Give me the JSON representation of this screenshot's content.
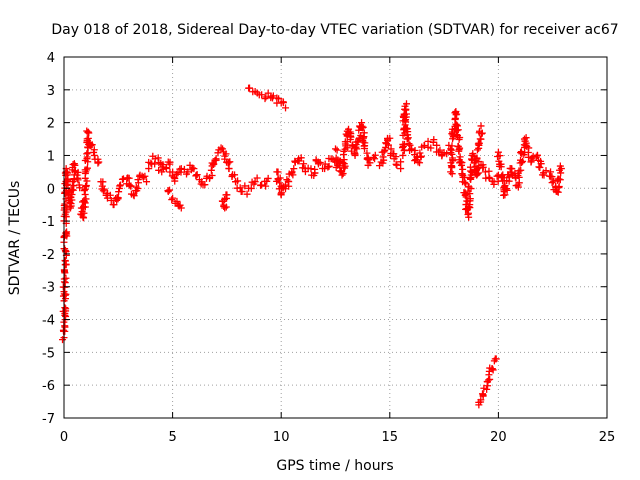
{
  "chart_data": {
    "type": "scatter",
    "title": "Day 018 of 2018, Sidereal Day-to-day VTEC variation (SDTVAR) for receiver ac67",
    "xlabel": "GPS time / hours",
    "ylabel": "SDTVAR / TECUs",
    "xlim": [
      0,
      25
    ],
    "ylim": [
      -7,
      4
    ],
    "xticks": [
      0,
      5,
      10,
      15,
      20,
      25
    ],
    "yticks": [
      -7,
      -6,
      -5,
      -4,
      -3,
      -2,
      -1,
      0,
      1,
      2,
      3,
      4
    ],
    "grid": true,
    "marker": "plus",
    "series": [
      {
        "name": "SDTVAR",
        "color": "#ff0000",
        "segments": [
          {
            "x": [
              0.0,
              0.0,
              0.0,
              0.1
            ],
            "y": [
              -1.5,
              -3.15,
              -4.55,
              0.6
            ]
          },
          {
            "x": [
              0.1,
              0.2,
              0.3,
              0.4,
              0.5,
              0.6,
              0.7
            ],
            "y": [
              0.5,
              -0.3,
              -0.6,
              0.2,
              0.7,
              0.4,
              0.1
            ]
          },
          {
            "x": [
              0.8,
              0.9,
              1.0,
              1.1,
              1.2,
              1.4,
              1.6
            ],
            "y": [
              -0.6,
              -0.9,
              0.5,
              1.7,
              1.3,
              1.0,
              0.8
            ]
          },
          {
            "x": [
              1.7,
              2.0,
              2.3,
              2.6,
              2.9,
              3.2,
              3.5,
              3.8
            ],
            "y": [
              0.2,
              -0.3,
              -0.5,
              0.1,
              0.3,
              -0.2,
              0.4,
              0.2
            ]
          },
          {
            "x": [
              3.9,
              4.2,
              4.5,
              4.8,
              5.1,
              5.4,
              5.7
            ],
            "y": [
              0.6,
              0.9,
              0.5,
              0.8,
              0.3,
              0.6,
              0.5
            ]
          },
          {
            "x": [
              4.8,
              5.0,
              5.2,
              5.4
            ],
            "y": [
              -0.1,
              -0.3,
              -0.4,
              -0.6
            ]
          },
          {
            "x": [
              5.8,
              6.1,
              6.4,
              6.7,
              7.0,
              7.3,
              7.6,
              7.9,
              8.2,
              8.5,
              8.8,
              9.1,
              9.4
            ],
            "y": [
              0.7,
              0.4,
              0.1,
              0.3,
              0.9,
              1.2,
              0.6,
              0.2,
              -0.1,
              0.0,
              0.2,
              0.1,
              0.3
            ]
          },
          {
            "x": [
              7.3,
              7.4,
              7.5
            ],
            "y": [
              -0.4,
              -0.6,
              -0.2
            ]
          },
          {
            "x": [
              8.5,
              8.8,
              9.1,
              9.4,
              9.6,
              9.8,
              10.0,
              10.2
            ],
            "y": [
              3.05,
              2.95,
              2.85,
              2.9,
              2.75,
              2.75,
              2.6,
              2.45
            ]
          },
          {
            "x": [
              9.8,
              10.0,
              10.2,
              10.5,
              10.8,
              11.1,
              11.4,
              11.7,
              12.0,
              12.3,
              12.6
            ],
            "y": [
              0.5,
              -0.2,
              0.1,
              0.5,
              0.9,
              0.6,
              0.4,
              0.8,
              0.6,
              0.9,
              0.7
            ]
          },
          {
            "x": [
              12.5,
              12.8,
              13.1,
              13.4,
              13.7,
              14.0,
              14.3,
              14.6,
              14.9,
              15.2,
              15.5
            ],
            "y": [
              1.2,
              0.4,
              1.8,
              1.0,
              2.0,
              0.7,
              0.9,
              0.8,
              1.5,
              0.9,
              0.6
            ]
          },
          {
            "x": [
              15.6,
              15.7,
              15.8,
              16.0,
              16.3,
              16.6,
              17.0,
              17.4,
              17.8
            ],
            "y": [
              1.0,
              2.5,
              1.5,
              1.2,
              0.8,
              1.3,
              1.4,
              1.0,
              1.2
            ]
          },
          {
            "x": [
              17.8,
              18.0,
              18.3,
              18.6,
              18.8,
              19.0,
              19.2
            ],
            "y": [
              0.5,
              2.3,
              0.7,
              -0.8,
              1.0,
              0.4,
              1.9
            ]
          },
          {
            "x": [
              19.1,
              19.3,
              19.5,
              19.7,
              19.9
            ],
            "y": [
              -6.6,
              -6.3,
              -5.9,
              -5.5,
              -5.2
            ]
          },
          {
            "x": [
              19.2,
              19.4,
              19.6,
              19.8,
              20.0
            ],
            "y": [
              0.7,
              0.5,
              0.3,
              0.2,
              0.4
            ]
          },
          {
            "x": [
              20.0,
              20.3,
              20.6,
              20.9,
              21.2,
              21.5,
              21.8,
              22.1,
              22.4,
              22.7,
              22.9
            ],
            "y": [
              1.1,
              -0.2,
              0.6,
              0.1,
              1.5,
              0.8,
              1.0,
              0.4,
              0.5,
              -0.1,
              0.6
            ]
          }
        ]
      }
    ]
  }
}
